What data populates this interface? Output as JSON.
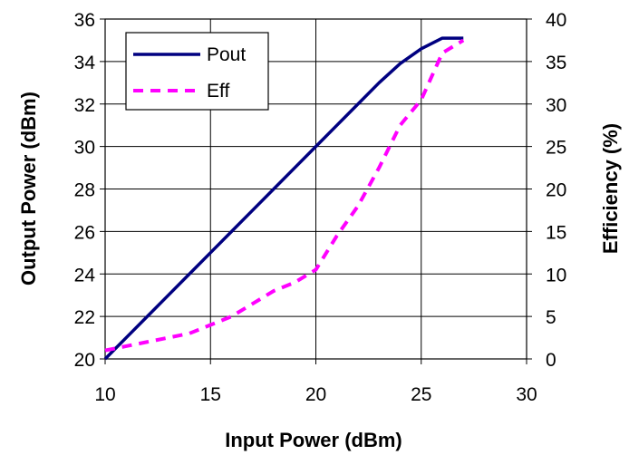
{
  "chart_data": {
    "type": "line",
    "xlabel": "Input Power (dBm)",
    "ylabel": "Output Power (dBm)",
    "y2label": "Efficiency (%)",
    "xlim": [
      10,
      30
    ],
    "ylim": [
      20,
      36
    ],
    "y2lim": [
      0,
      40
    ],
    "xticks": [
      "10",
      "15",
      "20",
      "25",
      "30"
    ],
    "yticks": [
      "20",
      "22",
      "24",
      "26",
      "28",
      "30",
      "32",
      "34",
      "36"
    ],
    "y2ticks": [
      "0",
      "5",
      "10",
      "15",
      "20",
      "25",
      "30",
      "35",
      "40"
    ],
    "grid": true,
    "legend_position": "top-left",
    "series": [
      {
        "name": "Pout",
        "axis": "left",
        "color": "#000080",
        "style": "solid",
        "x": [
          10,
          11,
          12,
          13,
          14,
          15,
          16,
          17,
          18,
          19,
          20,
          21,
          22,
          23,
          24,
          25,
          26,
          27
        ],
        "y": [
          20.0,
          21.0,
          22.0,
          23.0,
          24.0,
          25.0,
          26.0,
          27.0,
          28.0,
          29.0,
          30.0,
          31.0,
          32.0,
          33.0,
          33.9,
          34.6,
          35.1,
          35.1
        ]
      },
      {
        "name": "Eff",
        "axis": "right",
        "color": "#ff00ff",
        "style": "dashed",
        "x": [
          10,
          11,
          12,
          13,
          14,
          15,
          16,
          17,
          18,
          19,
          20,
          21,
          22,
          23,
          24,
          25,
          26,
          27
        ],
        "y": [
          1.0,
          1.5,
          2.0,
          2.5,
          3.0,
          4.0,
          5.0,
          6.5,
          8.0,
          9.0,
          10.5,
          14.5,
          18.0,
          22.5,
          27.5,
          30.5,
          36.0,
          37.5
        ]
      }
    ]
  }
}
